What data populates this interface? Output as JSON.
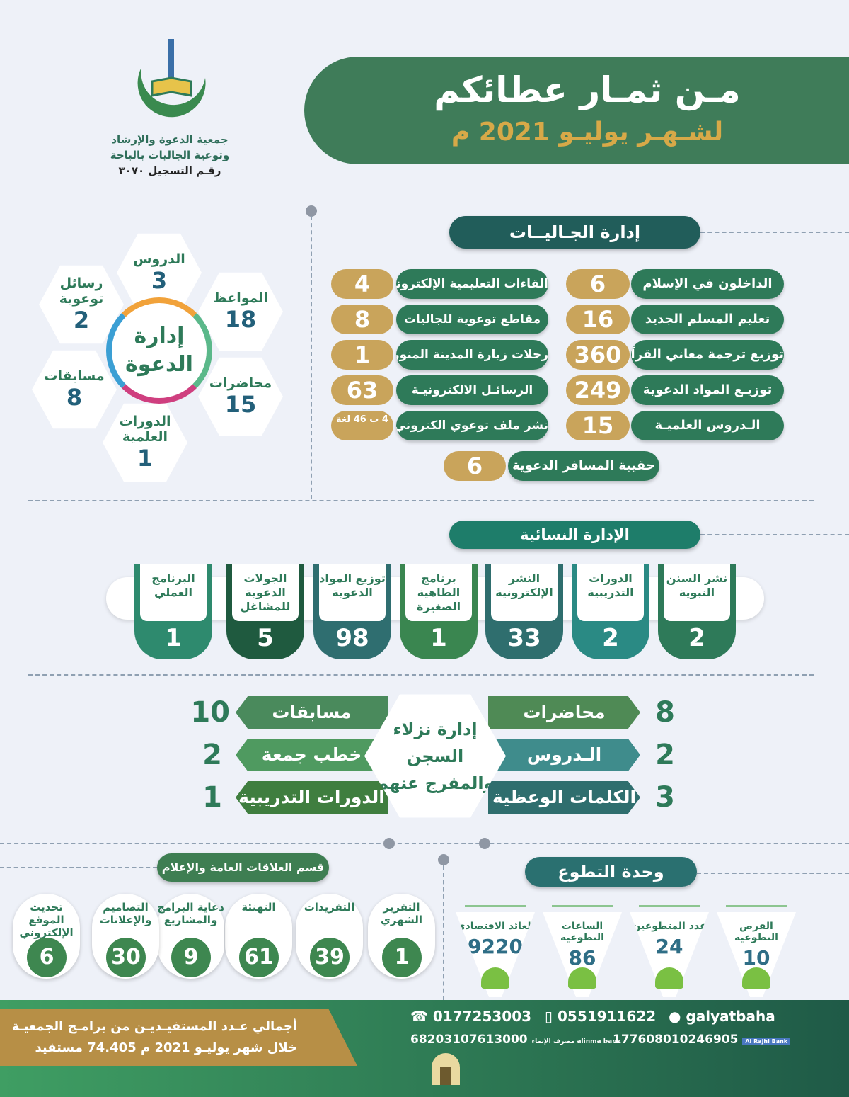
{
  "header": {
    "title": "مـن ثمـار عطائكم",
    "subtitle": "لشـهـر يوليـو 2021 م"
  },
  "org": {
    "name_line1": "جمعية الدعوة والإرشاد",
    "name_line2": "وتوعية الجاليات بالباحة",
    "registration": "رقـم التسجيل ٣٠٧٠"
  },
  "jaliyat": {
    "title": "إدارة الجـاليــات",
    "right": [
      {
        "label": "الداخلون في الإسلام",
        "value": "6"
      },
      {
        "label": "تعليم المسلم الجديد",
        "value": "16"
      },
      {
        "label": "توزيع ترجمة معاني القرآن",
        "value": "360"
      },
      {
        "label": "توزيـع المواد الدعوية",
        "value": "249"
      },
      {
        "label": "الـدروس العلميـة",
        "value": "15"
      }
    ],
    "left": [
      {
        "label": "القاءات التعليمية الإلكترونية",
        "value": "4"
      },
      {
        "label": "مقاطع توعوية للجاليات",
        "value": "8"
      },
      {
        "label": "رحلات زيارة المدينة المنورة",
        "value": "1"
      },
      {
        "label": "الرسائـل الالكترونيـة",
        "value": "63"
      },
      {
        "label": "نشر ملف توعوي الكتروني",
        "value": "4 ب 46 لغة"
      }
    ],
    "bottom": {
      "label": "حقيبة المسافر الدعوية",
      "value": "6"
    }
  },
  "dawah": {
    "title": "إدارة الدعوة",
    "items": [
      {
        "label": "الدروس",
        "value": "3"
      },
      {
        "label": "المواعظ",
        "value": "18"
      },
      {
        "label": "محاضرات",
        "value": "15"
      },
      {
        "label": "الدورات العلمية",
        "value": "1"
      },
      {
        "label": "مسابقات",
        "value": "8"
      },
      {
        "label": "رسائل توعوية",
        "value": "2"
      }
    ]
  },
  "women": {
    "title": "الإدارة النسائية",
    "items": [
      {
        "label": "نشر السنن النبوية",
        "value": "2",
        "color": "#2e7a59"
      },
      {
        "label": "الدورات التدريبية",
        "value": "2",
        "color": "#2a8a84"
      },
      {
        "label": "النشر الإلكترونية",
        "value": "33",
        "color": "#2f6e6e"
      },
      {
        "label": "برنامج الطاهية الصغيرة",
        "value": "1",
        "color": "#3a8650"
      },
      {
        "label": "توزيع المواد الدعوية",
        "value": "98",
        "color": "#2f6e70"
      },
      {
        "label": "الجولات الدعوية للمشاغل",
        "value": "5",
        "color": "#1f5a3f"
      },
      {
        "label": "البرنامج العملي",
        "value": "1",
        "color": "#2e8a6e"
      }
    ]
  },
  "prison": {
    "title": "إدارة نزلاء السجن والمفرج عنهم",
    "right": [
      {
        "label": "محاضرات",
        "value": "8"
      },
      {
        "label": "الـدروس",
        "value": "2"
      },
      {
        "label": "الكلمات الوعظية",
        "value": "3"
      }
    ],
    "left": [
      {
        "label": "مسابقات",
        "value": "10"
      },
      {
        "label": "خطب جمعة",
        "value": "2"
      },
      {
        "label": "الدورات التدريبية",
        "value": "1"
      }
    ]
  },
  "pr": {
    "title": "قسم العلاقات العامة والإعلام",
    "items": [
      {
        "label": "التقرير الشهري",
        "value": "1"
      },
      {
        "label": "التفريدات",
        "value": "39"
      },
      {
        "label": "التهنئة",
        "value": "61"
      },
      {
        "label": "دعاية البرامج والمشاريع",
        "value": "9"
      },
      {
        "label": "التصاميم والإعلانات",
        "value": "30"
      },
      {
        "label": "تحديث الموقع الإلكتروني",
        "value": "6"
      }
    ]
  },
  "volunteer": {
    "title": "وحدة التطوع",
    "items": [
      {
        "label": "الفرص التطوعية",
        "value": "10"
      },
      {
        "label": "عدد المتطوعين",
        "value": "24"
      },
      {
        "label": "الساعات التطوعية",
        "value": "86"
      },
      {
        "label": "العائد الاقتصادي",
        "value": "9220"
      }
    ]
  },
  "footer": {
    "total_line1": "أجمالي عـدد المستفيـديـن من برامـج الجمعيـة",
    "total_line2": "خلال شهر يوليـو 2021 م   74.405 مستفيد",
    "phone": "0177253003",
    "mobile": "0551911622",
    "twitter": "galyatbaha",
    "alinma_account": "68203107613000",
    "alinma_bank": "مصرف الإنماء alinma bank",
    "rajhi_account": "177608010246905",
    "rajhi_bank": "Al Rajhi Bank"
  },
  "colors": {
    "green": "#2e7a59",
    "gold": "#c9a45b",
    "teal": "#215d5a"
  }
}
